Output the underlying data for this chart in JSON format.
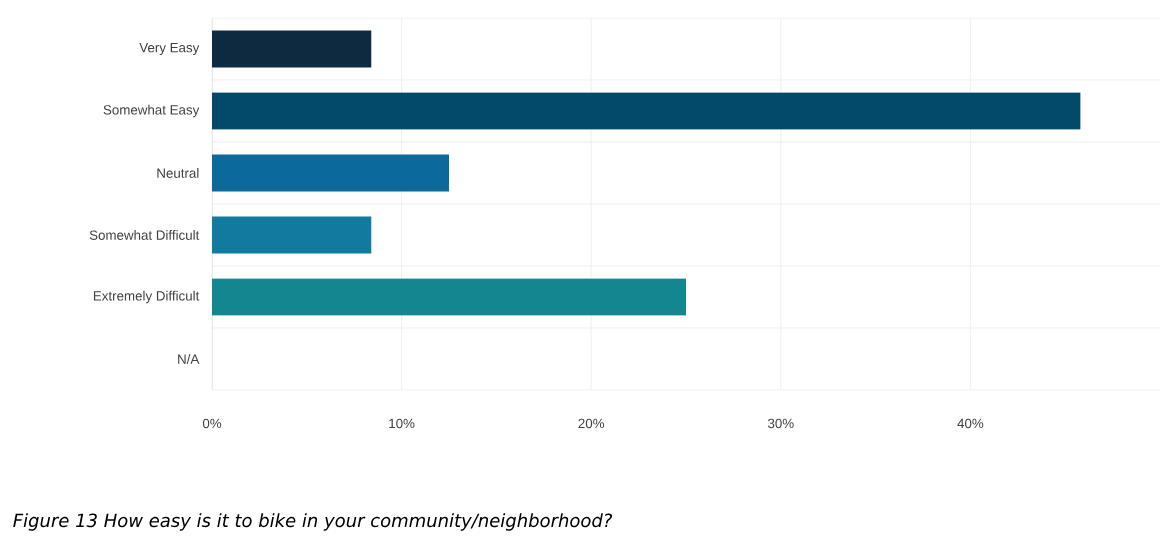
{
  "chart_data": {
    "type": "bar",
    "orientation": "horizontal",
    "categories": [
      "Very Easy",
      "Somewhat Easy",
      "Neutral",
      "Somewhat Difficult",
      "Extremely Difficult",
      "N/A"
    ],
    "values": [
      8.4,
      45.8,
      12.5,
      8.4,
      25.0,
      0
    ],
    "colors": [
      "#0d2a40",
      "#034a6a",
      "#0b6a9a",
      "#117a9e",
      "#12878f",
      "#12878f"
    ],
    "xlim": [
      0,
      50
    ],
    "xticks": [
      {
        "value": 0,
        "label": "0%"
      },
      {
        "value": 10,
        "label": "10%"
      },
      {
        "value": 20,
        "label": "20%"
      },
      {
        "value": 30,
        "label": "30%"
      },
      {
        "value": 40,
        "label": "40%"
      }
    ],
    "grid": true,
    "annotations": [
      "Figure 13 How easy is it to bike in your community/neighborhood?"
    ]
  }
}
